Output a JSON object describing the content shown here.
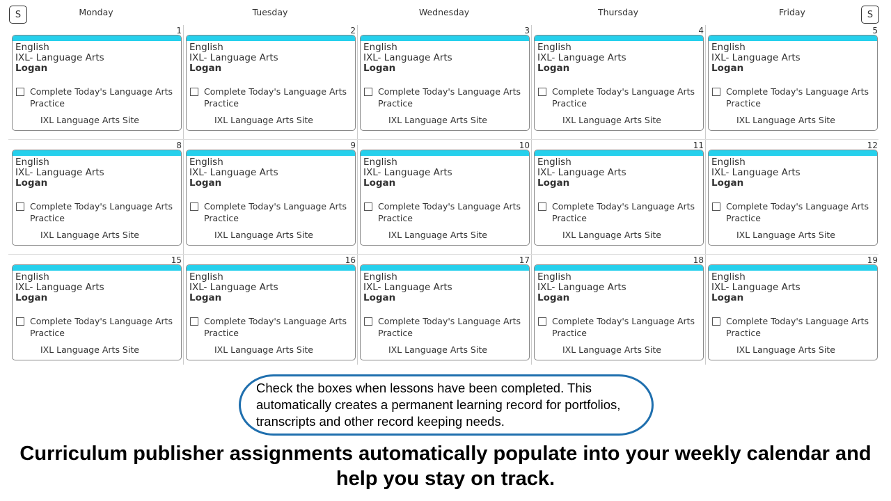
{
  "nav": {
    "prev_label": "S",
    "next_label": "S"
  },
  "days": [
    "Monday",
    "Tuesday",
    "Wednesday",
    "Thursday",
    "Friday"
  ],
  "weeks": [
    {
      "dates": [
        "1",
        "2",
        "3",
        "4",
        "5"
      ]
    },
    {
      "dates": [
        "8",
        "9",
        "10",
        "11",
        "12"
      ]
    },
    {
      "dates": [
        "15",
        "16",
        "17",
        "18",
        "19"
      ]
    }
  ],
  "assignment": {
    "subject": "English",
    "course": "IXL- Language Arts",
    "student": "Logan",
    "task": "Complete Today's Language Arts Practice",
    "link": "IXL Language Arts Site",
    "checked": false
  },
  "colors": {
    "card_bar": "#26d0ec",
    "note_border": "#1f6fae"
  },
  "note": "Check the boxes when lessons have been completed. This automatically creates a permanent learning record for portfolios, transcripts and other record keeping needs.",
  "caption": "Curriculum publisher assignments automatically populate into your weekly calendar and help you stay on track."
}
